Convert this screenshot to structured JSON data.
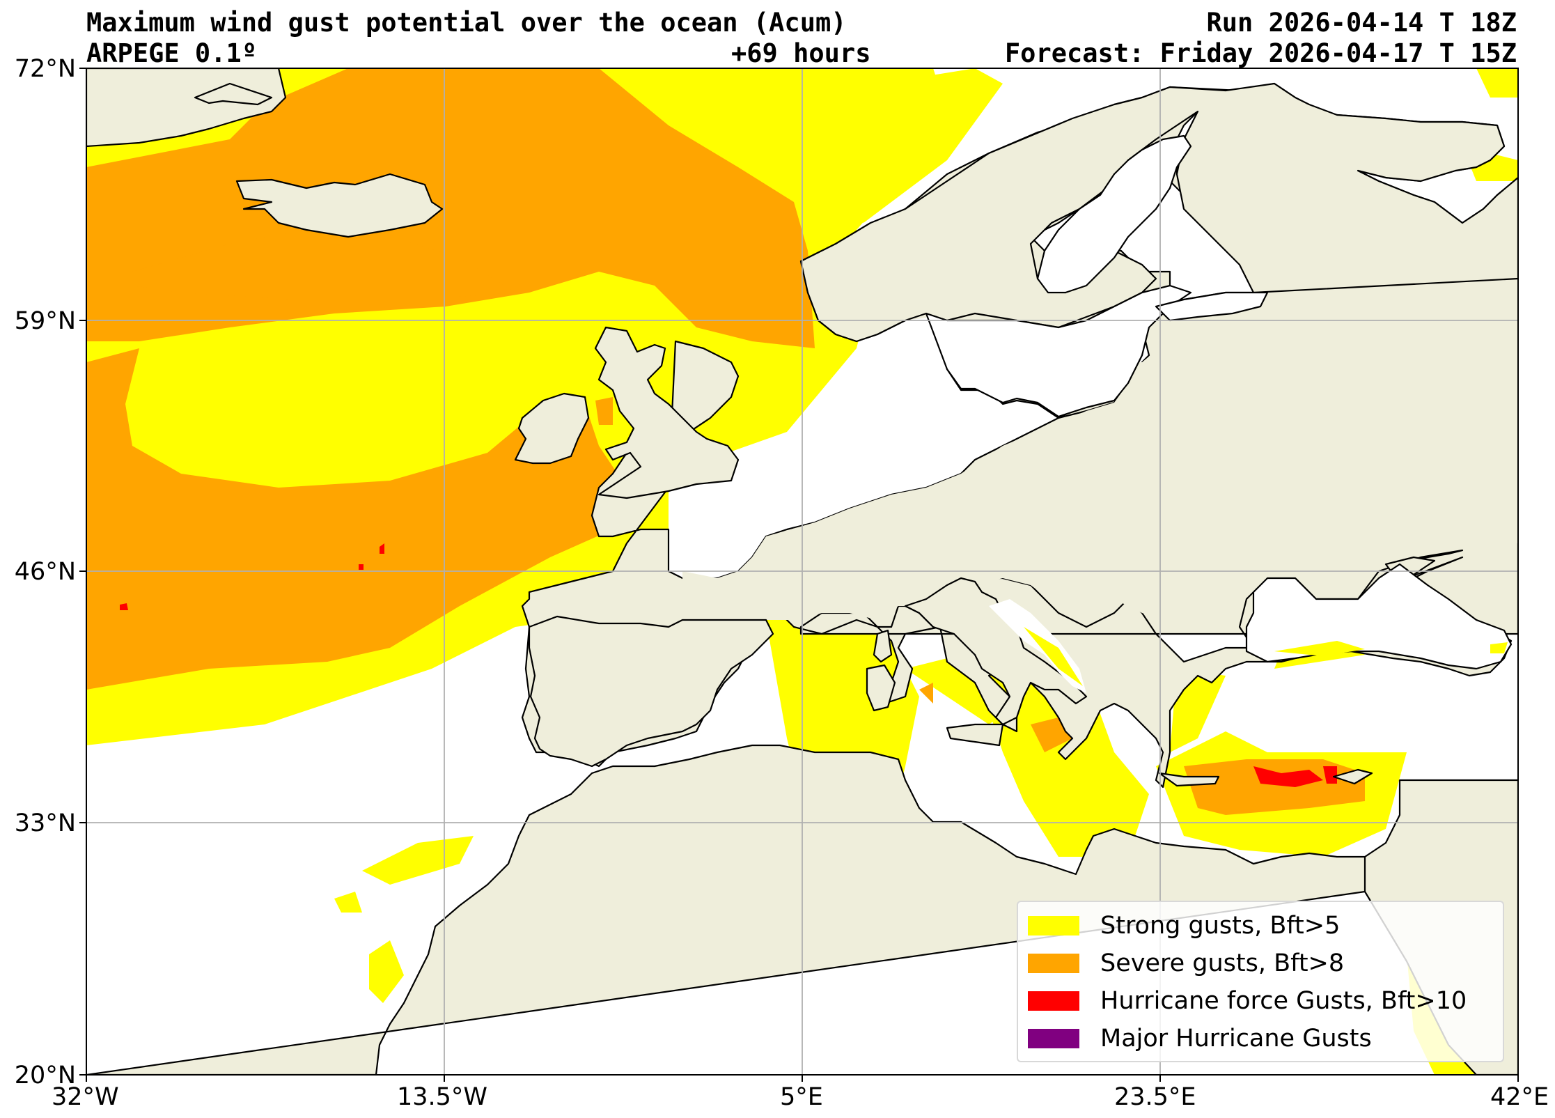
{
  "title": {
    "main": "Maximum wind gust potential over the ocean (Acum)",
    "model": "ARPEGE 0.1º",
    "lead_time": "+69 hours",
    "run": "Run 2026-04-14 T 18Z",
    "forecast": "Forecast: Friday 2026-04-17 T 15Z"
  },
  "axes": {
    "lat_labels": [
      "72°N",
      "59°N",
      "46°N",
      "33°N",
      "20°N"
    ],
    "lon_labels": [
      "32°W",
      "13.5°W",
      "5°E",
      "23.5°E",
      "42°E"
    ],
    "lat_range": [
      20,
      72
    ],
    "lon_range": [
      -32,
      42
    ],
    "gridlines": true
  },
  "legend": {
    "placement": "bottom-right",
    "items": [
      {
        "label": "Strong gusts, Bft>5",
        "color": "#ffff00"
      },
      {
        "label": "Severe gusts, Bft>8",
        "color": "#ffa500"
      },
      {
        "label": "Hurricane force Gusts, Bft>10",
        "color": "#ff0000"
      },
      {
        "label": "Major Hurricane Gusts",
        "color": "#800080"
      }
    ]
  },
  "colors": {
    "land": "#efeedb",
    "ocean": "#ffffff",
    "coastline": "#000000",
    "grid": "#b0b0b0"
  }
}
